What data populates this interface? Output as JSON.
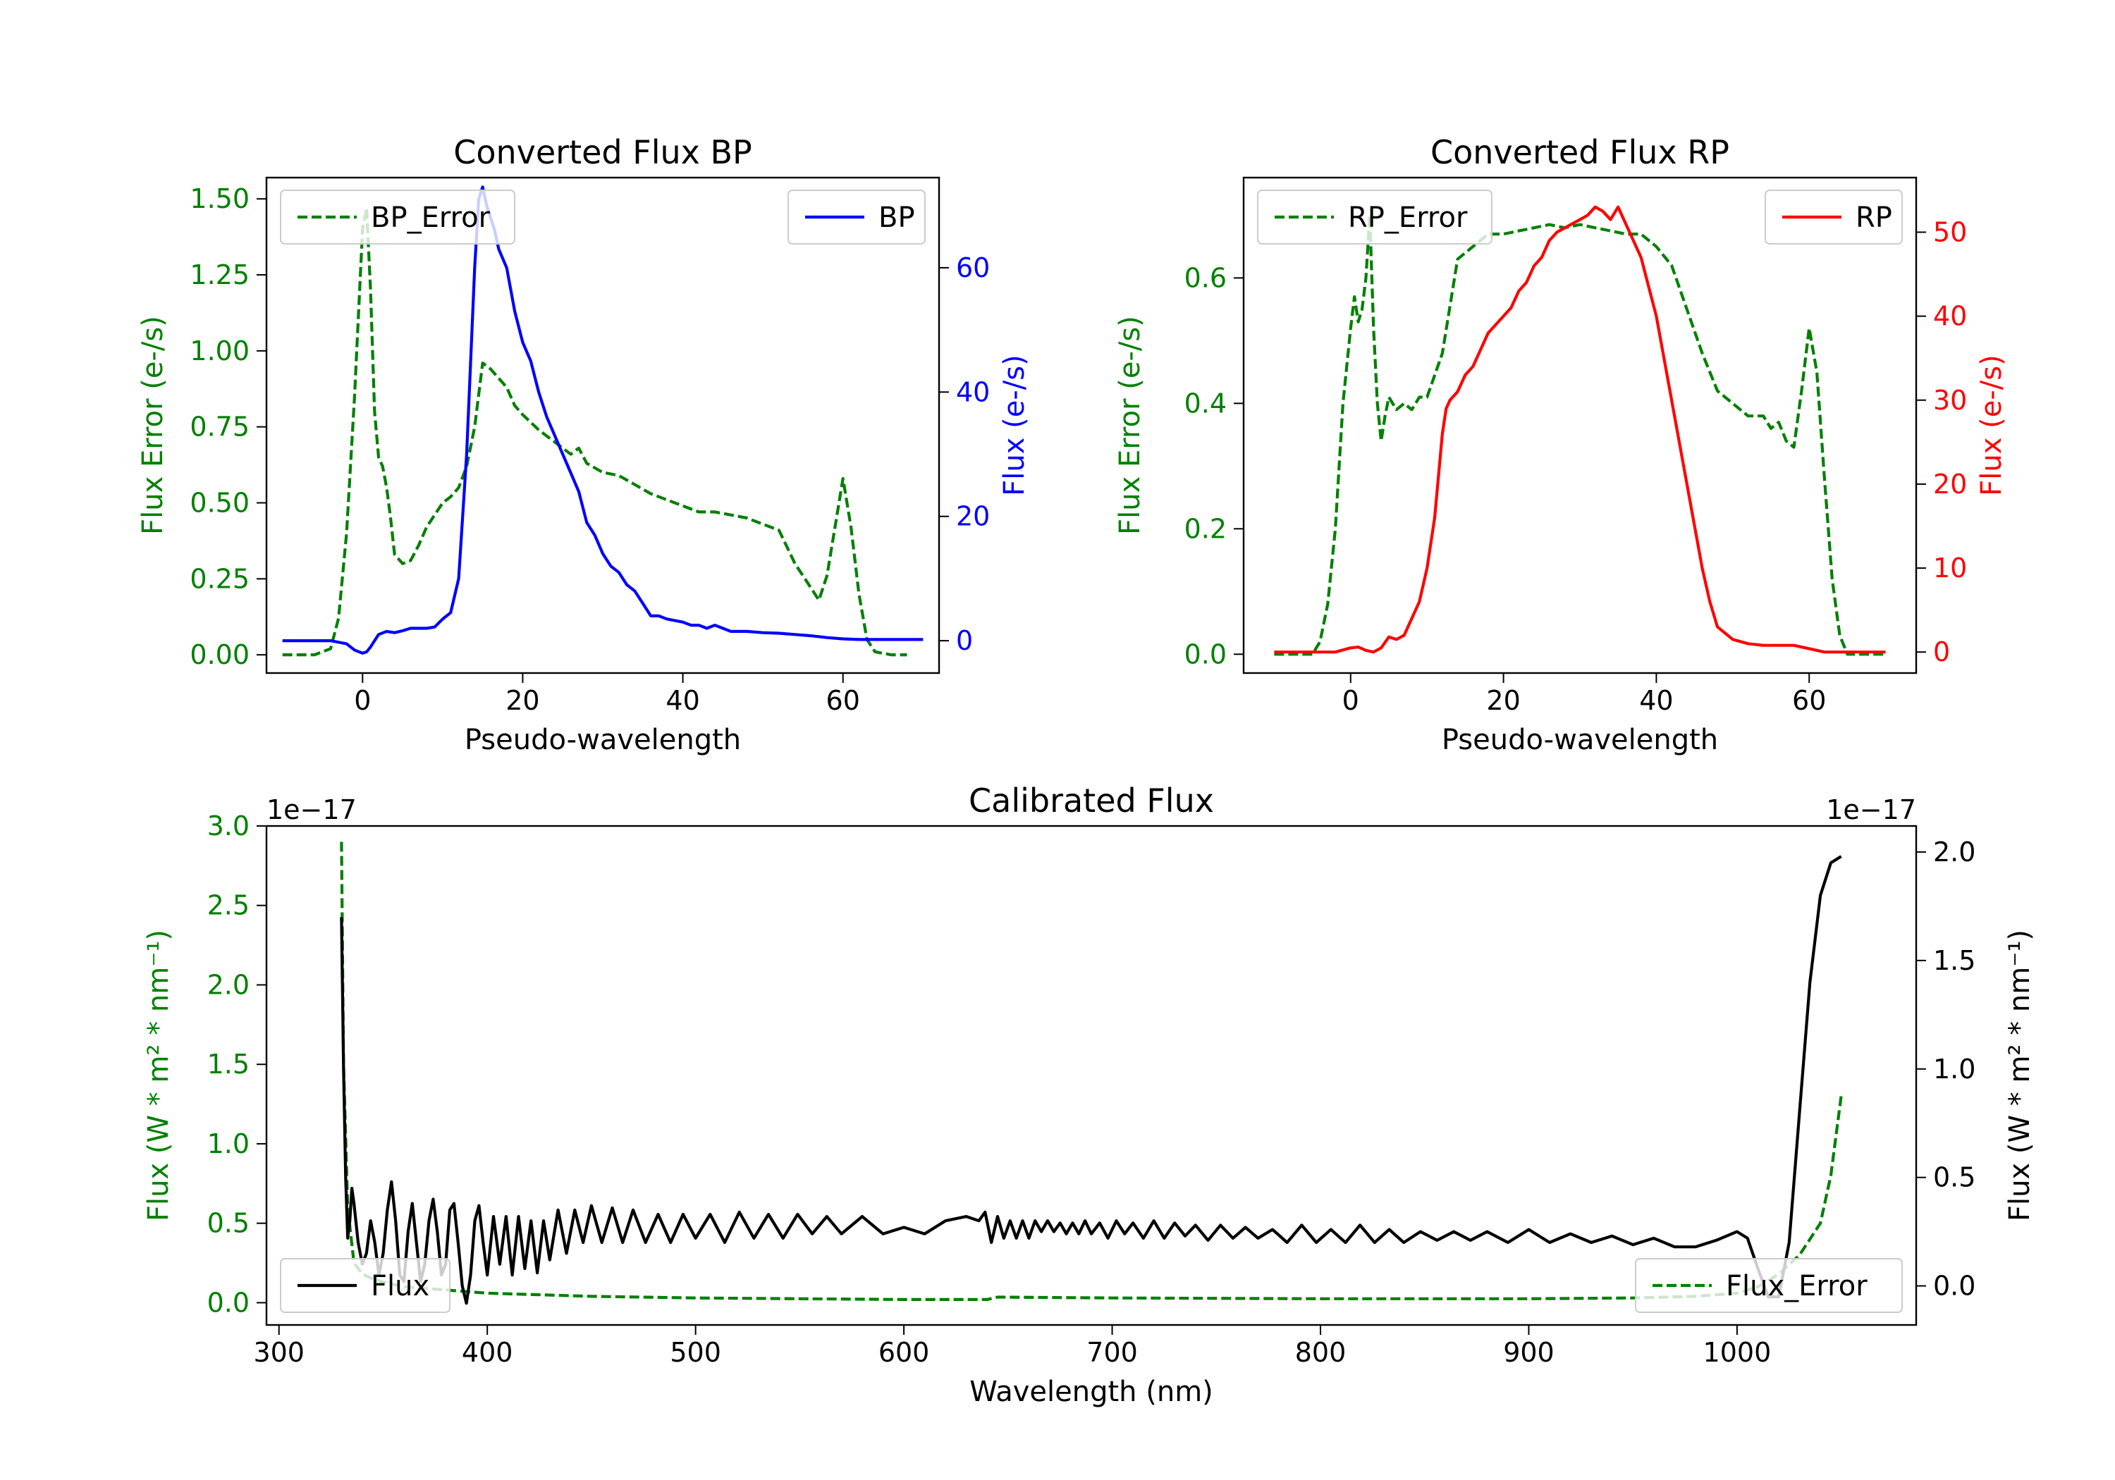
{
  "colors": {
    "error": "#008000",
    "bp": "#0000ff",
    "rp": "#ff0000",
    "flux": "#000000",
    "axis": "#000000"
  },
  "chart_data": [
    {
      "id": "bp",
      "type": "line",
      "title": "Converted Flux BP",
      "xlabel": "Pseudo-wavelength",
      "ylabel_left": "Flux Error (e-/s)",
      "ylabel_right": "Flux (e-/s)",
      "xlim": [
        -12,
        72
      ],
      "ylim_left": [
        -0.06,
        1.57
      ],
      "ylim_right": [
        -5.2,
        74.5
      ],
      "xticks": [
        0,
        20,
        40,
        60
      ],
      "xtick_labels": [
        "0",
        "20",
        "40",
        "60"
      ],
      "yticks_left": [
        0,
        0.25,
        0.5,
        0.75,
        1.0,
        1.25,
        1.5
      ],
      "ytick_labels_left": [
        "0.00",
        "0.25",
        "0.50",
        "0.75",
        "1.00",
        "1.25",
        "1.50"
      ],
      "yticks_right": [
        0,
        20,
        40,
        60
      ],
      "ytick_labels_right": [
        "0",
        "20",
        "40",
        "60"
      ],
      "legend_left": "BP_Error",
      "legend_right": "BP",
      "series": [
        {
          "name": "BP_Error",
          "axis": "left",
          "style": "dashed",
          "x": [
            -10,
            -6,
            -4,
            -3,
            -2,
            -1,
            0,
            0.5,
            1,
            1.5,
            2,
            2.5,
            3,
            3.5,
            4,
            5,
            6,
            7,
            8,
            9,
            10,
            11,
            12,
            13,
            14,
            15,
            16,
            17,
            18,
            19,
            20,
            22,
            24,
            26,
            27,
            28,
            30,
            32,
            34,
            36,
            38,
            40,
            42,
            44,
            46,
            48,
            50,
            52,
            54,
            56,
            57,
            58,
            59,
            60,
            61,
            62,
            63,
            64,
            66,
            68
          ],
          "y": [
            0,
            0,
            0.02,
            0.12,
            0.4,
            0.85,
            1.4,
            1.47,
            1.2,
            0.8,
            0.65,
            0.62,
            0.55,
            0.45,
            0.33,
            0.3,
            0.31,
            0.36,
            0.42,
            0.46,
            0.5,
            0.52,
            0.55,
            0.62,
            0.75,
            0.96,
            0.94,
            0.91,
            0.88,
            0.82,
            0.79,
            0.74,
            0.7,
            0.66,
            0.68,
            0.63,
            0.6,
            0.59,
            0.56,
            0.53,
            0.51,
            0.49,
            0.47,
            0.47,
            0.46,
            0.45,
            0.43,
            0.41,
            0.3,
            0.22,
            0.18,
            0.26,
            0.42,
            0.58,
            0.42,
            0.2,
            0.05,
            0.01,
            0,
            0
          ]
        },
        {
          "name": "BP",
          "axis": "right",
          "style": "solid",
          "x": [
            -10,
            -6,
            -4,
            -2,
            -1,
            0,
            0.5,
            1,
            2,
            3,
            4,
            5,
            6,
            8,
            9,
            10,
            11,
            12,
            13,
            14,
            14.5,
            15,
            15.5,
            16,
            16.5,
            17,
            18,
            19,
            20,
            21,
            22,
            23,
            24,
            25,
            26,
            27,
            28,
            29,
            30,
            31,
            32,
            33,
            34,
            35,
            36,
            37,
            38,
            40,
            41,
            42,
            43,
            44,
            45,
            46,
            48,
            50,
            52,
            54,
            56,
            58,
            60,
            62,
            65,
            70
          ],
          "y": [
            0,
            0,
            0,
            -0.5,
            -1.5,
            -2,
            -1.8,
            -1,
            1,
            1.5,
            1.3,
            1.6,
            2,
            2,
            2.2,
            3.5,
            4.5,
            10,
            30,
            60,
            71,
            73,
            70,
            68,
            66,
            63,
            60,
            53,
            48,
            45,
            40,
            36,
            33,
            30,
            27,
            24,
            19,
            17,
            14,
            12,
            11,
            9,
            8,
            6,
            4,
            4,
            3.5,
            3,
            2.5,
            2.5,
            2,
            2.5,
            2,
            1.5,
            1.5,
            1.3,
            1.2,
            1,
            0.8,
            0.5,
            0.3,
            0.2,
            0.2,
            0.2
          ]
        }
      ]
    },
    {
      "id": "rp",
      "type": "line",
      "title": "Converted Flux RP",
      "xlabel": "Pseudo-wavelength",
      "ylabel_left": "Flux Error (e-/s)",
      "ylabel_right": "Flux (e-/s)",
      "xlim": [
        -14,
        74
      ],
      "ylim_left": [
        -0.03,
        0.76
      ],
      "ylim_right": [
        -2.5,
        56.5
      ],
      "xticks": [
        0,
        20,
        40,
        60
      ],
      "xtick_labels": [
        "0",
        "20",
        "40",
        "60"
      ],
      "yticks_left": [
        0,
        0.2,
        0.4,
        0.6
      ],
      "ytick_labels_left": [
        "0.0",
        "0.2",
        "0.4",
        "0.6"
      ],
      "yticks_right": [
        0,
        10,
        20,
        30,
        40,
        50
      ],
      "ytick_labels_right": [
        "0",
        "10",
        "20",
        "30",
        "40",
        "50"
      ],
      "legend_left": "RP_Error",
      "legend_right": "RP",
      "series": [
        {
          "name": "RP_Error",
          "axis": "left",
          "style": "dashed",
          "x": [
            -10,
            -5,
            -4,
            -3,
            -2,
            -1,
            0,
            0.5,
            1,
            1.5,
            2,
            2.5,
            3,
            3.5,
            4,
            4.5,
            5,
            6,
            7,
            8,
            9,
            10,
            12,
            14,
            16,
            18,
            20,
            22,
            24,
            26,
            28,
            30,
            32,
            34,
            36,
            38,
            40,
            42,
            44,
            46,
            48,
            50,
            52,
            54,
            55,
            56,
            57,
            58,
            59,
            60,
            61,
            62,
            63,
            64,
            65,
            70
          ],
          "y": [
            0,
            0,
            0.02,
            0.08,
            0.2,
            0.4,
            0.52,
            0.57,
            0.53,
            0.55,
            0.6,
            0.7,
            0.52,
            0.4,
            0.34,
            0.38,
            0.41,
            0.39,
            0.4,
            0.39,
            0.41,
            0.41,
            0.48,
            0.63,
            0.65,
            0.67,
            0.67,
            0.675,
            0.68,
            0.685,
            0.68,
            0.685,
            0.68,
            0.675,
            0.67,
            0.67,
            0.65,
            0.62,
            0.55,
            0.48,
            0.42,
            0.4,
            0.38,
            0.38,
            0.36,
            0.37,
            0.34,
            0.33,
            0.42,
            0.52,
            0.45,
            0.28,
            0.12,
            0.03,
            0,
            0
          ]
        },
        {
          "name": "RP",
          "axis": "right",
          "style": "solid",
          "x": [
            -10,
            -4,
            -2,
            0,
            1,
            2,
            3,
            4,
            5,
            6,
            7,
            8,
            9,
            10,
            11,
            12,
            12.5,
            13,
            14,
            15,
            16,
            17,
            18,
            19,
            20,
            21,
            22,
            23,
            24,
            25,
            26,
            27,
            28,
            29,
            30,
            31,
            32,
            33,
            34,
            35,
            36,
            37,
            38,
            40,
            42,
            44,
            46,
            47,
            48,
            50,
            52,
            54,
            56,
            58,
            60,
            62,
            65,
            70
          ],
          "y": [
            0,
            0,
            0,
            0.5,
            0.6,
            0.2,
            0,
            0.5,
            1.8,
            1.5,
            2,
            4,
            6,
            10,
            16,
            26,
            29,
            30,
            31,
            33,
            34,
            36,
            38,
            39,
            40,
            41,
            43,
            44,
            46,
            47,
            49,
            50,
            50.5,
            51,
            51.5,
            52,
            53,
            52.5,
            51.5,
            53,
            51,
            49,
            47,
            40,
            30,
            20,
            10,
            6,
            3,
            1.5,
            1,
            0.8,
            0.8,
            0.8,
            0.4,
            0,
            0,
            0
          ]
        }
      ]
    },
    {
      "id": "calibrated",
      "type": "line",
      "title": "Calibrated Flux",
      "xlabel": "Wavelength (nm)",
      "ylabel_left": "Flux (W * m² * nm⁻¹)",
      "ylabel_right": "Flux (W * m² * nm⁻¹)",
      "offset_left": "1e−17",
      "offset_right": "1e−17",
      "xlim": [
        294,
        1086
      ],
      "ylim_left": [
        -0.14,
        3.0
      ],
      "ylim_right": [
        -0.18,
        2.12
      ],
      "xticks": [
        300,
        400,
        500,
        600,
        700,
        800,
        900,
        1000
      ],
      "xtick_labels": [
        "300",
        "400",
        "500",
        "600",
        "700",
        "800",
        "900",
        "1000"
      ],
      "yticks_left": [
        0,
        0.5,
        1.0,
        1.5,
        2.0,
        2.5,
        3.0
      ],
      "ytick_labels_left": [
        "0.0",
        "0.5",
        "1.0",
        "1.5",
        "2.0",
        "2.5",
        "3.0"
      ],
      "yticks_right": [
        0,
        0.5,
        1.0,
        1.5,
        2.0
      ],
      "ytick_labels_right": [
        "0.0",
        "0.5",
        "1.0",
        "1.5",
        "2.0"
      ],
      "legend_left": "Flux",
      "legend_right": "Flux_Error",
      "series": [
        {
          "name": "Flux_Error",
          "axis": "left",
          "style": "dashed",
          "x": [
            330,
            331,
            333,
            336,
            340,
            345,
            350,
            360,
            380,
            400,
            450,
            500,
            550,
            600,
            640,
            645,
            700,
            800,
            900,
            950,
            980,
            1000,
            1010,
            1020,
            1030,
            1040,
            1045,
            1050
          ],
          "y": [
            2.9,
            1.5,
            0.6,
            0.25,
            0.18,
            0.15,
            0.13,
            0.1,
            0.08,
            0.06,
            0.04,
            0.03,
            0.025,
            0.02,
            0.02,
            0.035,
            0.03,
            0.025,
            0.025,
            0.03,
            0.04,
            0.06,
            0.1,
            0.18,
            0.3,
            0.5,
            0.8,
            1.3
          ]
        },
        {
          "name": "Flux",
          "axis": "right",
          "style": "solid",
          "x": [
            330,
            331,
            332,
            333,
            334,
            335,
            336,
            338,
            340,
            342,
            344,
            346,
            348,
            350,
            352,
            354,
            356,
            358,
            360,
            362,
            364,
            366,
            368,
            370,
            372,
            374,
            376,
            378,
            380,
            382,
            384,
            386,
            388,
            390,
            392,
            394,
            396,
            398,
            400,
            403,
            406,
            409,
            412,
            415,
            418,
            421,
            424,
            427,
            430,
            434,
            438,
            442,
            446,
            450,
            455,
            460,
            465,
            470,
            476,
            482,
            488,
            494,
            500,
            507,
            514,
            521,
            528,
            535,
            542,
            549,
            556,
            563,
            570,
            580,
            590,
            600,
            610,
            620,
            630,
            636,
            639,
            642,
            645,
            648,
            651,
            654,
            657,
            660,
            663,
            666,
            669,
            672,
            675,
            678,
            681,
            684,
            687,
            690,
            694,
            698,
            702,
            706,
            710,
            715,
            720,
            725,
            730,
            735,
            740,
            746,
            752,
            758,
            764,
            770,
            777,
            784,
            791,
            798,
            805,
            812,
            819,
            826,
            833,
            840,
            848,
            856,
            864,
            872,
            880,
            890,
            900,
            910,
            920,
            930,
            940,
            950,
            960,
            970,
            980,
            990,
            1000,
            1005,
            1010,
            1015,
            1020,
            1025,
            1030,
            1035,
            1040,
            1045,
            1050
          ],
          "y": [
            1.7,
            1.0,
            0.5,
            0.22,
            0.3,
            0.45,
            0.38,
            0.2,
            0.1,
            0.15,
            0.3,
            0.2,
            0.05,
            0.15,
            0.35,
            0.48,
            0.3,
            0.05,
            0.02,
            0.25,
            0.38,
            0.2,
            0.02,
            0.1,
            0.3,
            0.4,
            0.25,
            0.05,
            0.1,
            0.35,
            0.38,
            0.2,
            0.0,
            -0.08,
            0.05,
            0.3,
            0.37,
            0.2,
            0.05,
            0.32,
            0.1,
            0.32,
            0.05,
            0.32,
            0.08,
            0.3,
            0.06,
            0.3,
            0.12,
            0.35,
            0.15,
            0.35,
            0.2,
            0.37,
            0.2,
            0.36,
            0.2,
            0.35,
            0.2,
            0.33,
            0.2,
            0.33,
            0.22,
            0.33,
            0.2,
            0.34,
            0.22,
            0.33,
            0.22,
            0.33,
            0.24,
            0.32,
            0.24,
            0.32,
            0.24,
            0.27,
            0.24,
            0.3,
            0.32,
            0.3,
            0.34,
            0.2,
            0.32,
            0.22,
            0.3,
            0.22,
            0.3,
            0.22,
            0.3,
            0.25,
            0.3,
            0.25,
            0.29,
            0.24,
            0.29,
            0.24,
            0.3,
            0.24,
            0.29,
            0.22,
            0.3,
            0.24,
            0.29,
            0.22,
            0.3,
            0.22,
            0.29,
            0.23,
            0.28,
            0.21,
            0.28,
            0.22,
            0.27,
            0.22,
            0.26,
            0.2,
            0.28,
            0.2,
            0.26,
            0.2,
            0.28,
            0.2,
            0.26,
            0.2,
            0.25,
            0.21,
            0.25,
            0.21,
            0.25,
            0.2,
            0.26,
            0.2,
            0.24,
            0.2,
            0.23,
            0.19,
            0.22,
            0.18,
            0.18,
            0.21,
            0.25,
            0.22,
            0.08,
            -0.05,
            -0.05,
            0.2,
            0.8,
            1.4,
            1.8,
            1.95,
            1.98
          ]
        }
      ]
    }
  ]
}
